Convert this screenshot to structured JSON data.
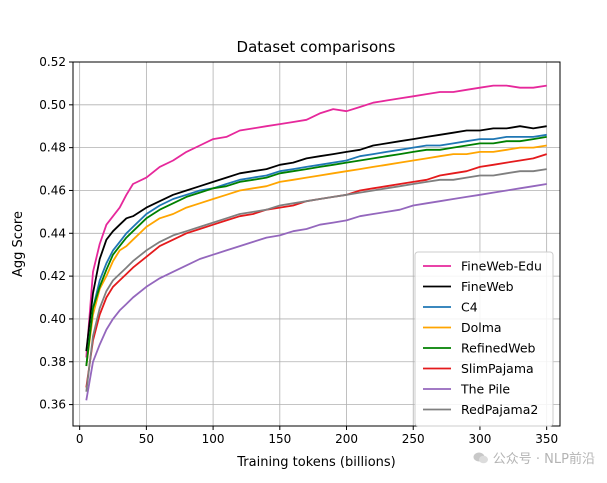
{
  "watermark": "公众号 · NLP前沿",
  "chart_data": {
    "type": "line",
    "title": "Dataset comparisons",
    "xlabel": "Training tokens (billions)",
    "ylabel": "Agg Score",
    "xlim": [
      -5,
      360
    ],
    "ylim": [
      0.35,
      0.52
    ],
    "xticks": [
      0,
      50,
      100,
      150,
      200,
      250,
      300,
      350
    ],
    "yticks": [
      0.36,
      0.38,
      0.4,
      0.42,
      0.44,
      0.46,
      0.48,
      0.5,
      0.52
    ],
    "ytick_labels": [
      "0.36",
      "0.38",
      "0.40",
      "0.42",
      "0.44",
      "0.46",
      "0.48",
      "0.50",
      "0.52"
    ],
    "grid": true,
    "legend_position": "lower-right",
    "series": [
      {
        "name": "FineWeb-Edu",
        "color": "#e6289b",
        "x": [
          5,
          10,
          15,
          20,
          25,
          30,
          35,
          40,
          50,
          60,
          70,
          80,
          90,
          100,
          110,
          120,
          130,
          140,
          150,
          160,
          170,
          180,
          190,
          200,
          210,
          220,
          230,
          240,
          250,
          260,
          270,
          280,
          290,
          300,
          310,
          320,
          330,
          340,
          350
        ],
        "y": [
          0.382,
          0.422,
          0.435,
          0.444,
          0.448,
          0.452,
          0.458,
          0.463,
          0.466,
          0.471,
          0.474,
          0.478,
          0.481,
          0.484,
          0.485,
          0.488,
          0.489,
          0.49,
          0.491,
          0.492,
          0.493,
          0.496,
          0.498,
          0.497,
          0.499,
          0.501,
          0.502,
          0.503,
          0.504,
          0.505,
          0.506,
          0.506,
          0.507,
          0.508,
          0.509,
          0.509,
          0.508,
          0.508,
          0.509
        ]
      },
      {
        "name": "FineWeb",
        "color": "#000000",
        "x": [
          5,
          10,
          15,
          20,
          25,
          30,
          35,
          40,
          50,
          60,
          70,
          80,
          90,
          100,
          110,
          120,
          130,
          140,
          150,
          160,
          170,
          180,
          190,
          200,
          210,
          220,
          230,
          240,
          250,
          260,
          270,
          280,
          290,
          300,
          310,
          320,
          330,
          340,
          350
        ],
        "y": [
          0.385,
          0.412,
          0.428,
          0.437,
          0.441,
          0.444,
          0.447,
          0.448,
          0.452,
          0.455,
          0.458,
          0.46,
          0.462,
          0.464,
          0.466,
          0.468,
          0.469,
          0.47,
          0.472,
          0.473,
          0.475,
          0.476,
          0.477,
          0.478,
          0.479,
          0.481,
          0.482,
          0.483,
          0.484,
          0.485,
          0.486,
          0.487,
          0.488,
          0.488,
          0.489,
          0.489,
          0.49,
          0.489,
          0.49
        ]
      },
      {
        "name": "C4",
        "color": "#1f77b4",
        "x": [
          5,
          10,
          15,
          20,
          25,
          30,
          35,
          40,
          50,
          60,
          70,
          80,
          90,
          100,
          110,
          120,
          130,
          140,
          150,
          160,
          170,
          180,
          190,
          200,
          210,
          220,
          230,
          240,
          250,
          260,
          270,
          280,
          290,
          300,
          310,
          320,
          330,
          340,
          350
        ],
        "y": [
          0.378,
          0.405,
          0.418,
          0.426,
          0.432,
          0.436,
          0.44,
          0.443,
          0.449,
          0.453,
          0.456,
          0.458,
          0.46,
          0.461,
          0.463,
          0.465,
          0.466,
          0.467,
          0.469,
          0.47,
          0.471,
          0.472,
          0.473,
          0.474,
          0.476,
          0.477,
          0.478,
          0.479,
          0.48,
          0.481,
          0.481,
          0.482,
          0.483,
          0.484,
          0.484,
          0.485,
          0.485,
          0.485,
          0.486
        ]
      },
      {
        "name": "Dolma",
        "color": "#ffa500",
        "x": [
          5,
          10,
          15,
          20,
          25,
          30,
          35,
          40,
          50,
          60,
          70,
          80,
          90,
          100,
          110,
          120,
          130,
          140,
          150,
          160,
          170,
          180,
          190,
          200,
          210,
          220,
          230,
          240,
          250,
          260,
          270,
          280,
          290,
          300,
          310,
          320,
          330,
          340,
          350
        ],
        "y": [
          0.378,
          0.402,
          0.414,
          0.42,
          0.427,
          0.432,
          0.434,
          0.437,
          0.443,
          0.447,
          0.449,
          0.452,
          0.454,
          0.456,
          0.458,
          0.46,
          0.461,
          0.462,
          0.464,
          0.465,
          0.466,
          0.467,
          0.468,
          0.469,
          0.47,
          0.471,
          0.472,
          0.473,
          0.474,
          0.475,
          0.476,
          0.477,
          0.477,
          0.478,
          0.478,
          0.479,
          0.48,
          0.48,
          0.481
        ]
      },
      {
        "name": "RefinedWeb",
        "color": "#008000",
        "x": [
          5,
          10,
          15,
          20,
          25,
          30,
          35,
          40,
          50,
          60,
          70,
          80,
          90,
          100,
          110,
          120,
          130,
          140,
          150,
          160,
          170,
          180,
          190,
          200,
          210,
          220,
          230,
          240,
          250,
          260,
          270,
          280,
          290,
          300,
          310,
          320,
          330,
          340,
          350
        ],
        "y": [
          0.378,
          0.405,
          0.415,
          0.423,
          0.43,
          0.434,
          0.438,
          0.441,
          0.447,
          0.451,
          0.454,
          0.457,
          0.459,
          0.461,
          0.462,
          0.464,
          0.465,
          0.466,
          0.468,
          0.469,
          0.47,
          0.471,
          0.472,
          0.473,
          0.474,
          0.475,
          0.476,
          0.477,
          0.478,
          0.479,
          0.479,
          0.48,
          0.481,
          0.482,
          0.482,
          0.483,
          0.483,
          0.484,
          0.485
        ]
      },
      {
        "name": "SlimPajama",
        "color": "#e41a1c",
        "x": [
          5,
          10,
          15,
          20,
          25,
          30,
          35,
          40,
          50,
          60,
          70,
          80,
          90,
          100,
          110,
          120,
          130,
          140,
          150,
          160,
          170,
          180,
          190,
          200,
          210,
          220,
          230,
          240,
          250,
          260,
          270,
          280,
          290,
          300,
          310,
          320,
          330,
          340,
          350
        ],
        "y": [
          0.368,
          0.39,
          0.402,
          0.41,
          0.415,
          0.418,
          0.421,
          0.424,
          0.429,
          0.434,
          0.437,
          0.44,
          0.442,
          0.444,
          0.446,
          0.448,
          0.449,
          0.451,
          0.452,
          0.453,
          0.455,
          0.456,
          0.457,
          0.458,
          0.46,
          0.461,
          0.462,
          0.463,
          0.464,
          0.465,
          0.467,
          0.468,
          0.469,
          0.471,
          0.472,
          0.473,
          0.474,
          0.475,
          0.477
        ]
      },
      {
        "name": "The Pile",
        "color": "#9467bd",
        "x": [
          5,
          10,
          15,
          20,
          25,
          30,
          35,
          40,
          50,
          60,
          70,
          80,
          90,
          100,
          110,
          120,
          130,
          140,
          150,
          160,
          170,
          180,
          190,
          200,
          210,
          220,
          230,
          240,
          250,
          260,
          270,
          280,
          290,
          300,
          310,
          320,
          330,
          340,
          350
        ],
        "y": [
          0.362,
          0.38,
          0.388,
          0.395,
          0.4,
          0.404,
          0.407,
          0.41,
          0.415,
          0.419,
          0.422,
          0.425,
          0.428,
          0.43,
          0.432,
          0.434,
          0.436,
          0.438,
          0.439,
          0.441,
          0.442,
          0.444,
          0.445,
          0.446,
          0.448,
          0.449,
          0.45,
          0.451,
          0.453,
          0.454,
          0.455,
          0.456,
          0.457,
          0.458,
          0.459,
          0.46,
          0.461,
          0.462,
          0.463
        ]
      },
      {
        "name": "RedPajama2",
        "color": "#7f7f7f",
        "x": [
          5,
          10,
          15,
          20,
          25,
          30,
          35,
          40,
          50,
          60,
          70,
          80,
          90,
          100,
          110,
          120,
          130,
          140,
          150,
          160,
          170,
          180,
          190,
          200,
          210,
          220,
          230,
          240,
          250,
          260,
          270,
          280,
          290,
          300,
          310,
          320,
          330,
          340,
          350
        ],
        "y": [
          0.366,
          0.392,
          0.405,
          0.413,
          0.418,
          0.421,
          0.424,
          0.427,
          0.432,
          0.436,
          0.439,
          0.441,
          0.443,
          0.445,
          0.447,
          0.449,
          0.45,
          0.451,
          0.453,
          0.454,
          0.455,
          0.456,
          0.457,
          0.458,
          0.459,
          0.46,
          0.461,
          0.462,
          0.463,
          0.464,
          0.465,
          0.465,
          0.466,
          0.467,
          0.467,
          0.468,
          0.469,
          0.469,
          0.47
        ]
      }
    ]
  }
}
